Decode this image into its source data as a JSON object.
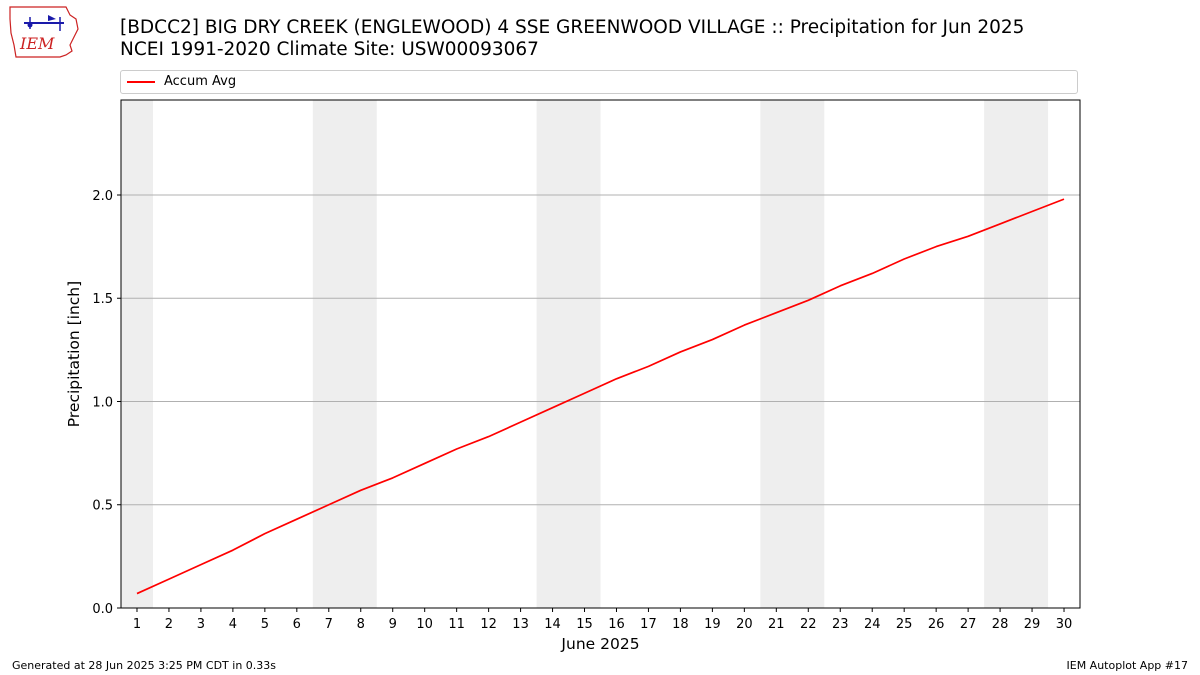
{
  "header": {
    "title_line1": "[BDCC2] BIG DRY CREEK (ENGLEWOOD) 4 SSE GREENWOOD VILLAGE :: Precipitation for Jun 2025",
    "title_line2": "NCEI 1991-2020 Climate Site: USW00093067",
    "logo_text": "IEM"
  },
  "legend": {
    "placement": "top",
    "items": [
      {
        "label": "Accum Avg",
        "color": "#ff0000"
      }
    ]
  },
  "footer": {
    "generated": "Generated at 28 Jun 2025 3:25 PM CDT in 0.33s",
    "app": "IEM Autoplot App #17"
  },
  "colors": {
    "series": "#ff0000",
    "weekend_band": "#eeeeee",
    "grid": "#b0b0b0",
    "logo_red": "#cc2222",
    "logo_blue": "#1a1aaa"
  },
  "chart_data": {
    "type": "line",
    "xlabel": "June 2025",
    "ylabel": "Precipitation [inch]",
    "xlim": [
      0.5,
      30.5
    ],
    "ylim": [
      0,
      2.46
    ],
    "grid": "horizontal",
    "x_ticks": [
      1,
      2,
      3,
      4,
      5,
      6,
      7,
      8,
      9,
      10,
      11,
      12,
      13,
      14,
      15,
      16,
      17,
      18,
      19,
      20,
      21,
      22,
      23,
      24,
      25,
      26,
      27,
      28,
      29,
      30
    ],
    "y_ticks": [
      0.0,
      0.5,
      1.0,
      1.5,
      2.0
    ],
    "y_tick_labels": [
      "0.0",
      "0.5",
      "1.0",
      "1.5",
      "2.0"
    ],
    "weekend_bands": [
      [
        0.5,
        1.5
      ],
      [
        6.5,
        8.5
      ],
      [
        13.5,
        15.5
      ],
      [
        20.5,
        22.5
      ],
      [
        27.5,
        29.5
      ]
    ],
    "series": [
      {
        "name": "Accum Avg",
        "color": "#ff0000",
        "x": [
          1,
          2,
          3,
          4,
          5,
          6,
          7,
          8,
          9,
          10,
          11,
          12,
          13,
          14,
          15,
          16,
          17,
          18,
          19,
          20,
          21,
          22,
          23,
          24,
          25,
          26,
          27,
          28,
          29,
          30
        ],
        "values": [
          0.07,
          0.14,
          0.21,
          0.28,
          0.36,
          0.43,
          0.5,
          0.57,
          0.63,
          0.7,
          0.77,
          0.83,
          0.9,
          0.97,
          1.04,
          1.11,
          1.17,
          1.24,
          1.3,
          1.37,
          1.43,
          1.49,
          1.56,
          1.62,
          1.69,
          1.75,
          1.8,
          1.86,
          1.92,
          1.98
        ]
      }
    ]
  }
}
